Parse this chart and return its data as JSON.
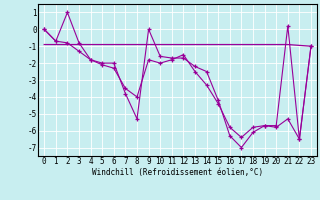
{
  "title": "",
  "xlabel": "Windchill (Refroidissement éolien,°C)",
  "background_color": "#c8eef0",
  "line_color": "#990099",
  "grid_color": "#ffffff",
  "xlim": [
    -0.5,
    23.5
  ],
  "ylim": [
    -7.5,
    1.5
  ],
  "yticks": [
    1,
    0,
    -1,
    -2,
    -3,
    -4,
    -5,
    -6,
    -7
  ],
  "xticks": [
    0,
    1,
    2,
    3,
    4,
    5,
    6,
    7,
    8,
    9,
    10,
    11,
    12,
    13,
    14,
    15,
    16,
    17,
    18,
    19,
    20,
    21,
    22,
    23
  ],
  "line1_x": [
    0,
    1,
    2,
    3,
    4,
    5,
    6,
    7,
    8,
    9,
    10,
    11,
    12,
    13,
    14,
    15,
    16,
    17,
    18,
    19,
    20,
    21,
    22,
    23
  ],
  "line1_y": [
    0.0,
    -0.7,
    1.0,
    -0.8,
    -1.8,
    -2.0,
    -2.0,
    -3.8,
    -5.3,
    0.0,
    -1.6,
    -1.7,
    -1.7,
    -2.2,
    -2.5,
    -4.2,
    -6.3,
    -7.0,
    -6.1,
    -5.7,
    -5.7,
    0.2,
    -6.5,
    -1.0
  ],
  "line2_x": [
    0,
    21,
    23
  ],
  "line2_y": [
    -0.9,
    -0.9,
    -1.0
  ],
  "line3_x": [
    0,
    1,
    2,
    3,
    4,
    5,
    6,
    7,
    8,
    9,
    10,
    11,
    12,
    13,
    14,
    15,
    16,
    17,
    18,
    19,
    20,
    21,
    22,
    23
  ],
  "line3_y": [
    0.0,
    -0.7,
    -0.8,
    -1.3,
    -1.8,
    -2.1,
    -2.3,
    -3.5,
    -4.0,
    -1.8,
    -2.0,
    -1.8,
    -1.5,
    -2.5,
    -3.3,
    -4.4,
    -5.8,
    -6.4,
    -5.8,
    -5.7,
    -5.8,
    -5.3,
    -6.5,
    -1.0
  ],
  "tick_fontsize": 5.5,
  "xlabel_fontsize": 5.5,
  "mono_font": "DejaVu Sans Mono"
}
